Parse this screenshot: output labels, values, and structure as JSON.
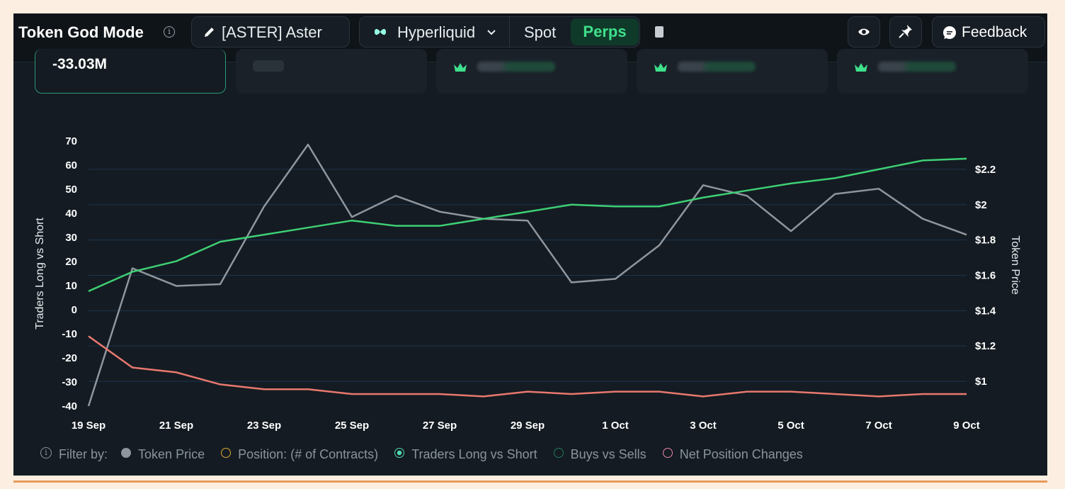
{
  "header": {
    "title": "Token God Mode",
    "token_label": "[ASTER] Aster",
    "chain_label": "Hyperliquid",
    "spot_label": "Spot",
    "perps_label": "Perps",
    "feedback_label": "Feedback",
    "icons": [
      "info-icon",
      "pencil-icon",
      "hyperliquid-logo-icon",
      "chevron-down-icon",
      "copy-icon",
      "eye-icon",
      "pin-icon",
      "chat-bubble-icon"
    ]
  },
  "stats": {
    "main_value": "-33.03M"
  },
  "legend": {
    "filter_label": "Filter by:",
    "items": [
      {
        "label": "Token Price",
        "color": "#8f969d",
        "style": "filled"
      },
      {
        "label": "Position: (# of Contracts)",
        "color": "#e0a93a",
        "style": "outline"
      },
      {
        "label": "Traders Long vs Short",
        "color": "#4fd8b0",
        "style": "selected"
      },
      {
        "label": "Buys vs Sells",
        "color": "#1f7a5a",
        "style": "outline"
      },
      {
        "label": "Net Position Changes",
        "color": "#e884a8",
        "style": "outline"
      }
    ]
  },
  "chart_data": {
    "type": "line",
    "x": [
      "19 Sep",
      "20 Sep",
      "21 Sep",
      "22 Sep",
      "23 Sep",
      "24 Sep",
      "25 Sep",
      "26 Sep",
      "27 Sep",
      "28 Sep",
      "29 Sep",
      "30 Sep",
      "1 Oct",
      "2 Oct",
      "3 Oct",
      "4 Oct",
      "5 Oct",
      "6 Oct",
      "7 Oct",
      "8 Oct",
      "9 Oct"
    ],
    "x_tick_labels": [
      "19 Sep",
      "21 Sep",
      "23 Sep",
      "25 Sep",
      "27 Sep",
      "29 Sep",
      "1 Oct",
      "3 Oct",
      "5 Oct",
      "7 Oct",
      "9 Oct"
    ],
    "ylabel": "Traders Long vs Short",
    "y2label": "Token Price",
    "ylim": [
      -40,
      70
    ],
    "y_ticks": [
      "70",
      "60",
      "50",
      "40",
      "30",
      "20",
      "10",
      "0",
      "-10",
      "-20",
      "-30",
      "-40"
    ],
    "y2lim": [
      0.86,
      2.36
    ],
    "y2_ticks": [
      "$2.2",
      "$2",
      "$1.8",
      "$1.6",
      "$1.4",
      "$1.2",
      "$1"
    ],
    "series": [
      {
        "axis": "y2",
        "color": "#8f969d",
        "values": [
          0.86,
          1.64,
          1.54,
          1.55,
          1.99,
          2.34,
          1.93,
          2.05,
          1.96,
          1.92,
          1.91,
          1.56,
          1.58,
          1.77,
          2.11,
          2.05,
          1.85,
          2.06,
          2.09,
          1.92,
          1.83
        ]
      },
      {
        "axis": "y2",
        "color": "#3ecf74",
        "values": [
          1.51,
          1.62,
          1.68,
          1.79,
          1.83,
          1.87,
          1.91,
          1.88,
          1.88,
          1.92,
          1.96,
          2.0,
          1.99,
          1.99,
          2.04,
          2.08,
          2.12,
          2.15,
          2.2,
          2.25,
          2.26
        ]
      },
      {
        "axis": "y",
        "color": "#e8786e",
        "values": [
          -11,
          -24,
          -26,
          -31,
          -33,
          -33,
          -35,
          -35,
          -35,
          -36,
          -34,
          -35,
          -34,
          -34,
          -36,
          -34,
          -34,
          -35,
          -36,
          -35,
          -35
        ]
      }
    ],
    "grid": true
  }
}
